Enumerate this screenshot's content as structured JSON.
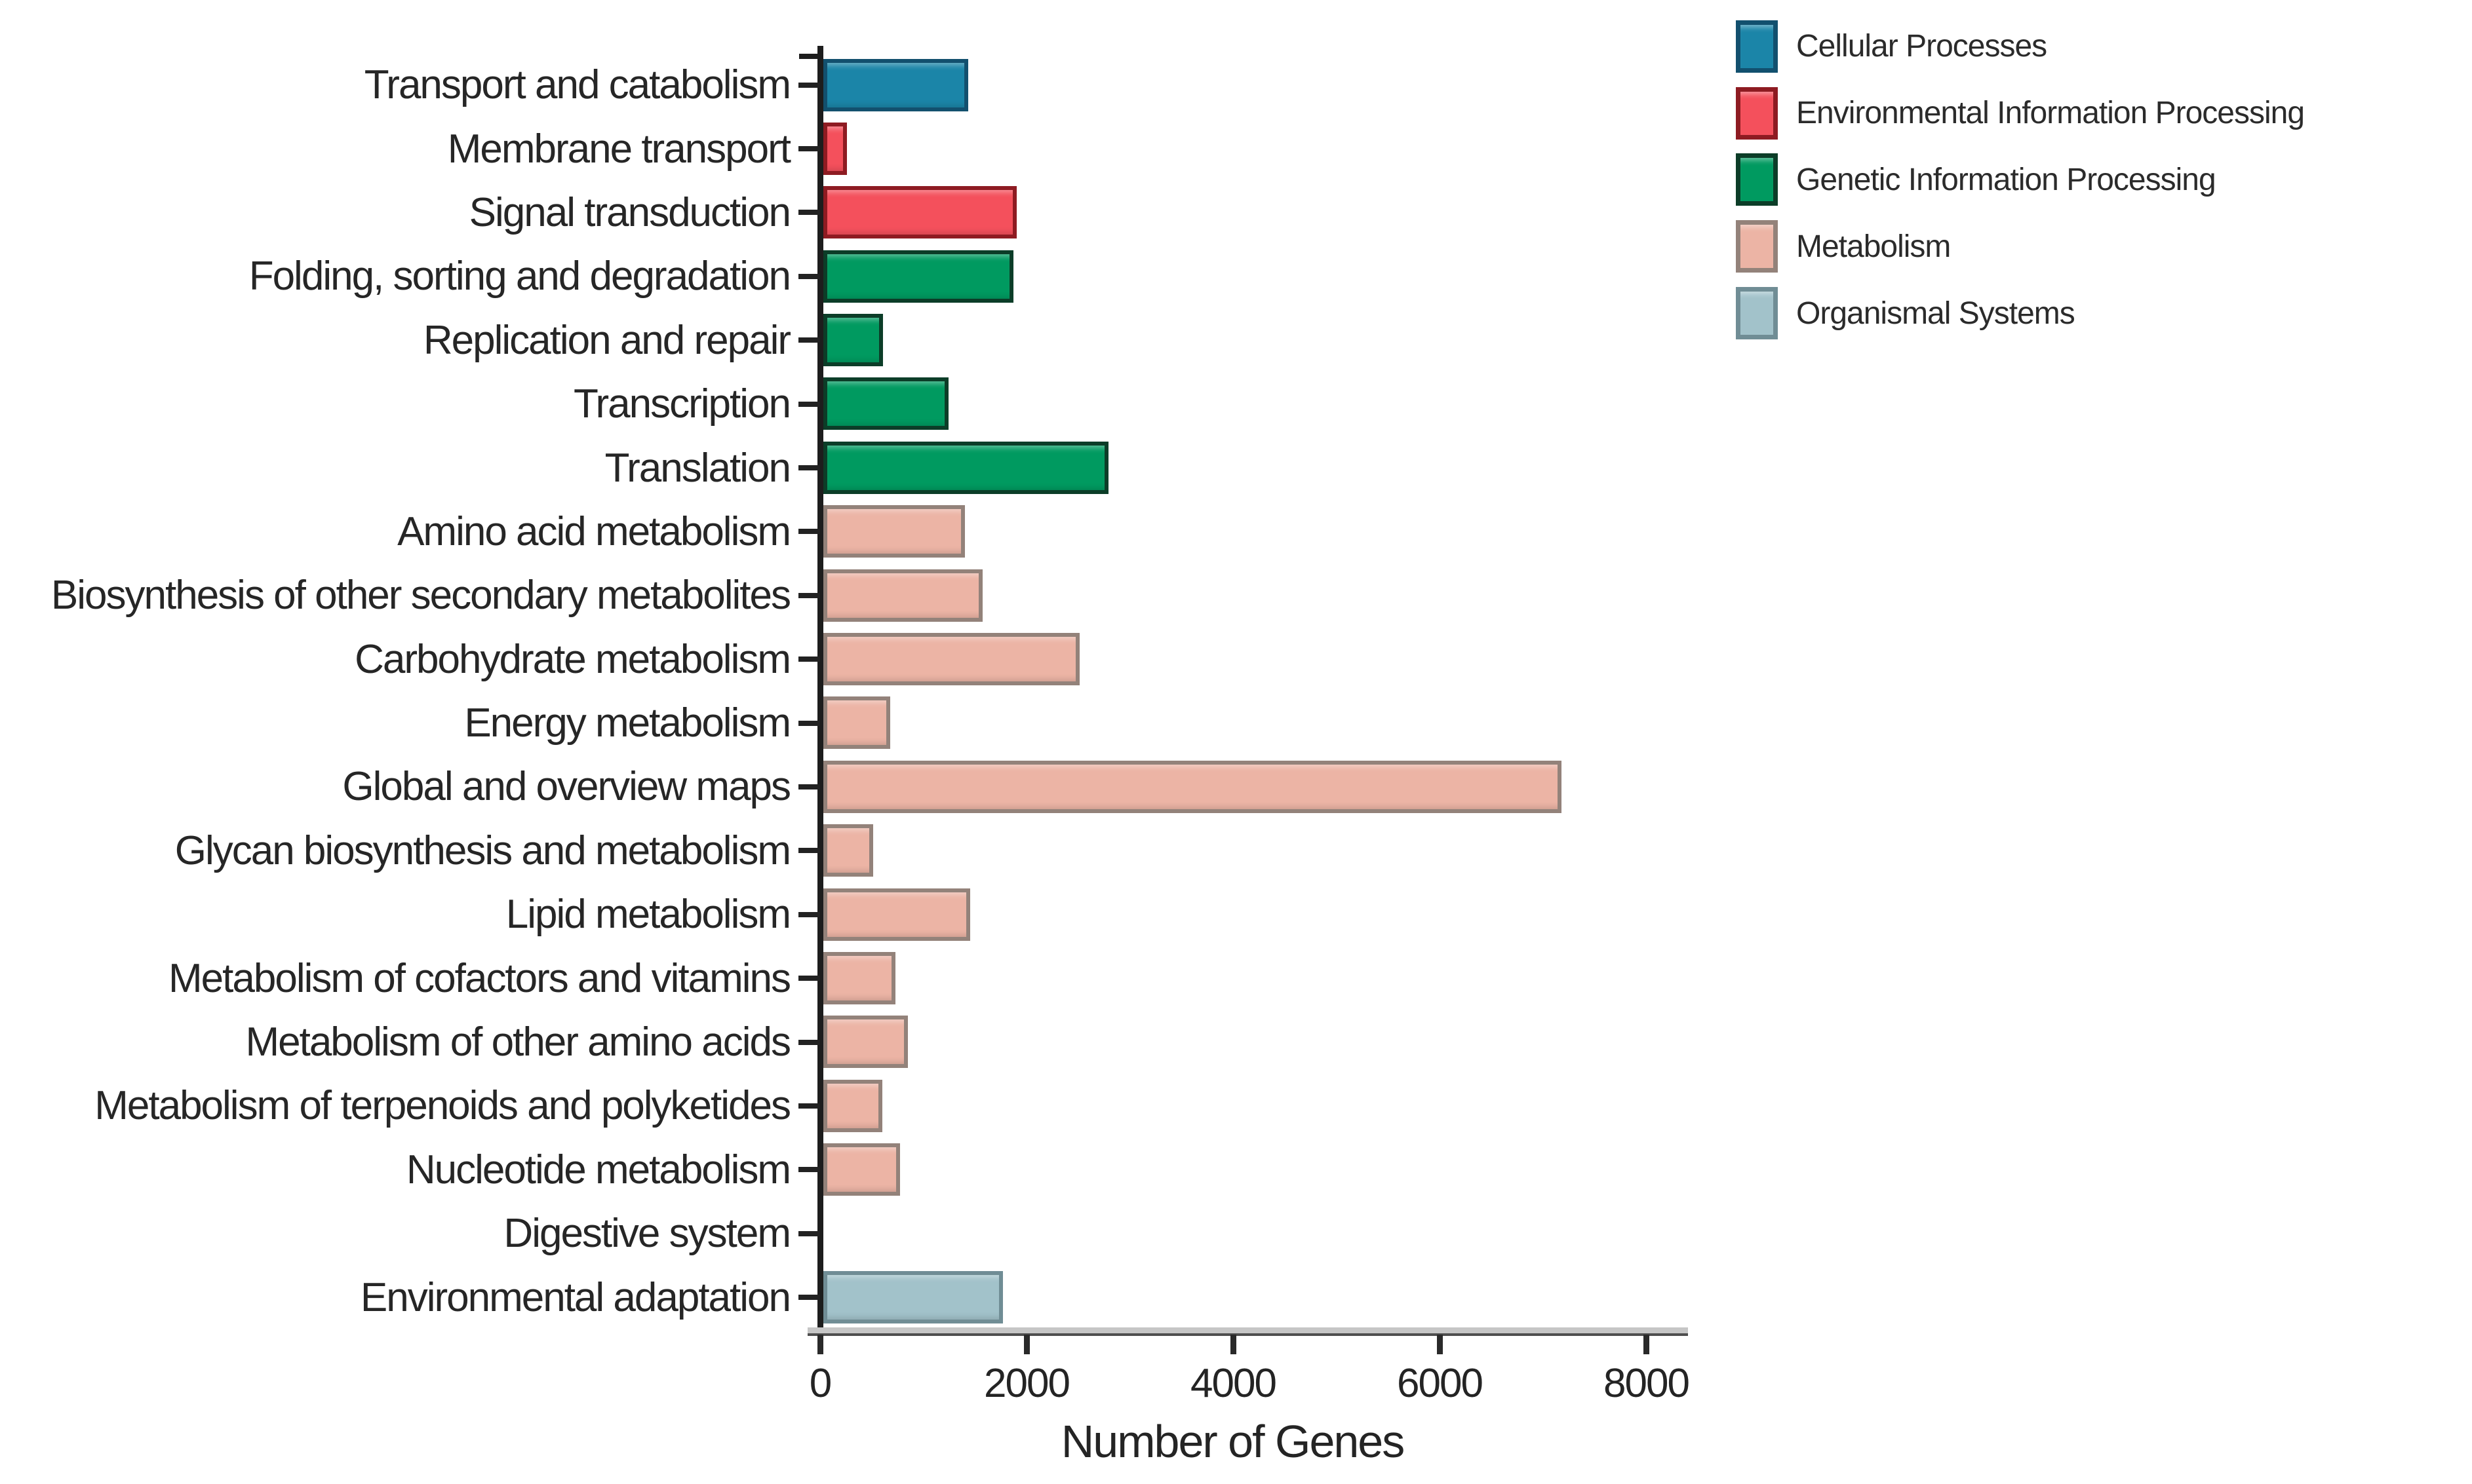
{
  "chart_data": {
    "type": "bar",
    "orientation": "horizontal",
    "title": "",
    "xlabel": "Number of Genes",
    "ylabel": "",
    "xlim": [
      0,
      8300
    ],
    "x_ticks": [
      0,
      2000,
      4000,
      6000,
      8000
    ],
    "grid": false,
    "legend_position": "top-right",
    "groups": [
      {
        "name": "Cellular Processes",
        "fill": "#1b85a8",
        "border": "#12506e"
      },
      {
        "name": "Environmental Information Processing",
        "fill": "#f4505c",
        "border": "#8e1b22"
      },
      {
        "name": "Genetic Information Processing",
        "fill": "#009a60",
        "border": "#0c3d28"
      },
      {
        "name": "Metabolism",
        "fill": "#ecb4a5",
        "border": "#93827a"
      },
      {
        "name": "Organismal Systems",
        "fill": "#a2c2ca",
        "border": "#708d95"
      }
    ],
    "categories": [
      {
        "label": "Transport and catabolism",
        "group": "Cellular Processes",
        "value": 1400
      },
      {
        "label": "Membrane transport",
        "group": "Environmental Information Processing",
        "value": 230
      },
      {
        "label": "Signal transduction",
        "group": "Environmental Information Processing",
        "value": 1870
      },
      {
        "label": "Folding, sorting and degradation",
        "group": "Genetic Information Processing",
        "value": 1840
      },
      {
        "label": "Replication and repair",
        "group": "Genetic Information Processing",
        "value": 580
      },
      {
        "label": "Transcription",
        "group": "Genetic Information Processing",
        "value": 1210
      },
      {
        "label": "Translation",
        "group": "Genetic Information Processing",
        "value": 2760
      },
      {
        "label": "Amino acid metabolism",
        "group": "Metabolism",
        "value": 1370
      },
      {
        "label": "Biosynthesis of other secondary metabolites",
        "group": "Metabolism",
        "value": 1540
      },
      {
        "label": "Carbohydrate metabolism",
        "group": "Metabolism",
        "value": 2480
      },
      {
        "label": "Energy metabolism",
        "group": "Metabolism",
        "value": 650
      },
      {
        "label": "Global and overview maps",
        "group": "Metabolism",
        "value": 7150
      },
      {
        "label": "Glycan biosynthesis and metabolism",
        "group": "Metabolism",
        "value": 480
      },
      {
        "label": "Lipid metabolism",
        "group": "Metabolism",
        "value": 1420
      },
      {
        "label": "Metabolism of cofactors and vitamins",
        "group": "Metabolism",
        "value": 700
      },
      {
        "label": "Metabolism of other amino acids",
        "group": "Metabolism",
        "value": 820
      },
      {
        "label": "Metabolism of terpenoids and polyketides",
        "group": "Metabolism",
        "value": 570
      },
      {
        "label": "Nucleotide metabolism",
        "group": "Metabolism",
        "value": 740
      },
      {
        "label": "Digestive system",
        "group": "Organismal Systems",
        "value": 0
      },
      {
        "label": "Environmental adaptation",
        "group": "Organismal Systems",
        "value": 1740
      }
    ]
  }
}
